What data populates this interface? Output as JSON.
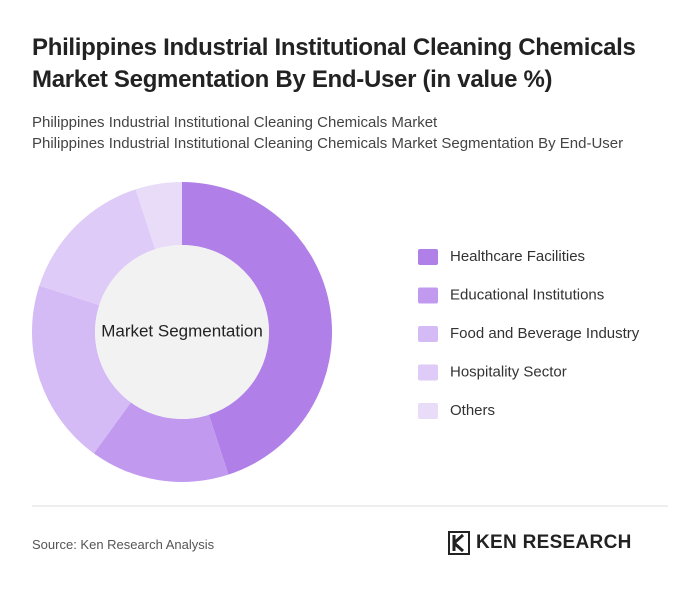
{
  "header": {
    "title": "Philippines Industrial Institutional Cleaning Chemicals Market Segmentation By End-User (in value %)",
    "subtitle": [
      "Philippines Industrial Institutional Cleaning Chemicals Market",
      "Philippines Industrial Institutional Cleaning Chemicals Market Segmentation By End-User"
    ]
  },
  "chart_data": {
    "type": "donut",
    "center_label": "Market Segmentation",
    "categories": [
      "Healthcare Facilities",
      "Educational Institutions",
      "Food and Beverage Industry",
      "Hospitality Sector",
      "Others"
    ],
    "values": [
      45,
      15,
      20,
      15,
      5
    ],
    "colors": [
      "#b07fe8",
      "#c19af0",
      "#d5bbf5",
      "#dfcbf7",
      "#e9dcf9"
    ]
  },
  "footer": {
    "source": "Source: Ken Research Analysis",
    "logo": "KEN RESEARCH"
  }
}
